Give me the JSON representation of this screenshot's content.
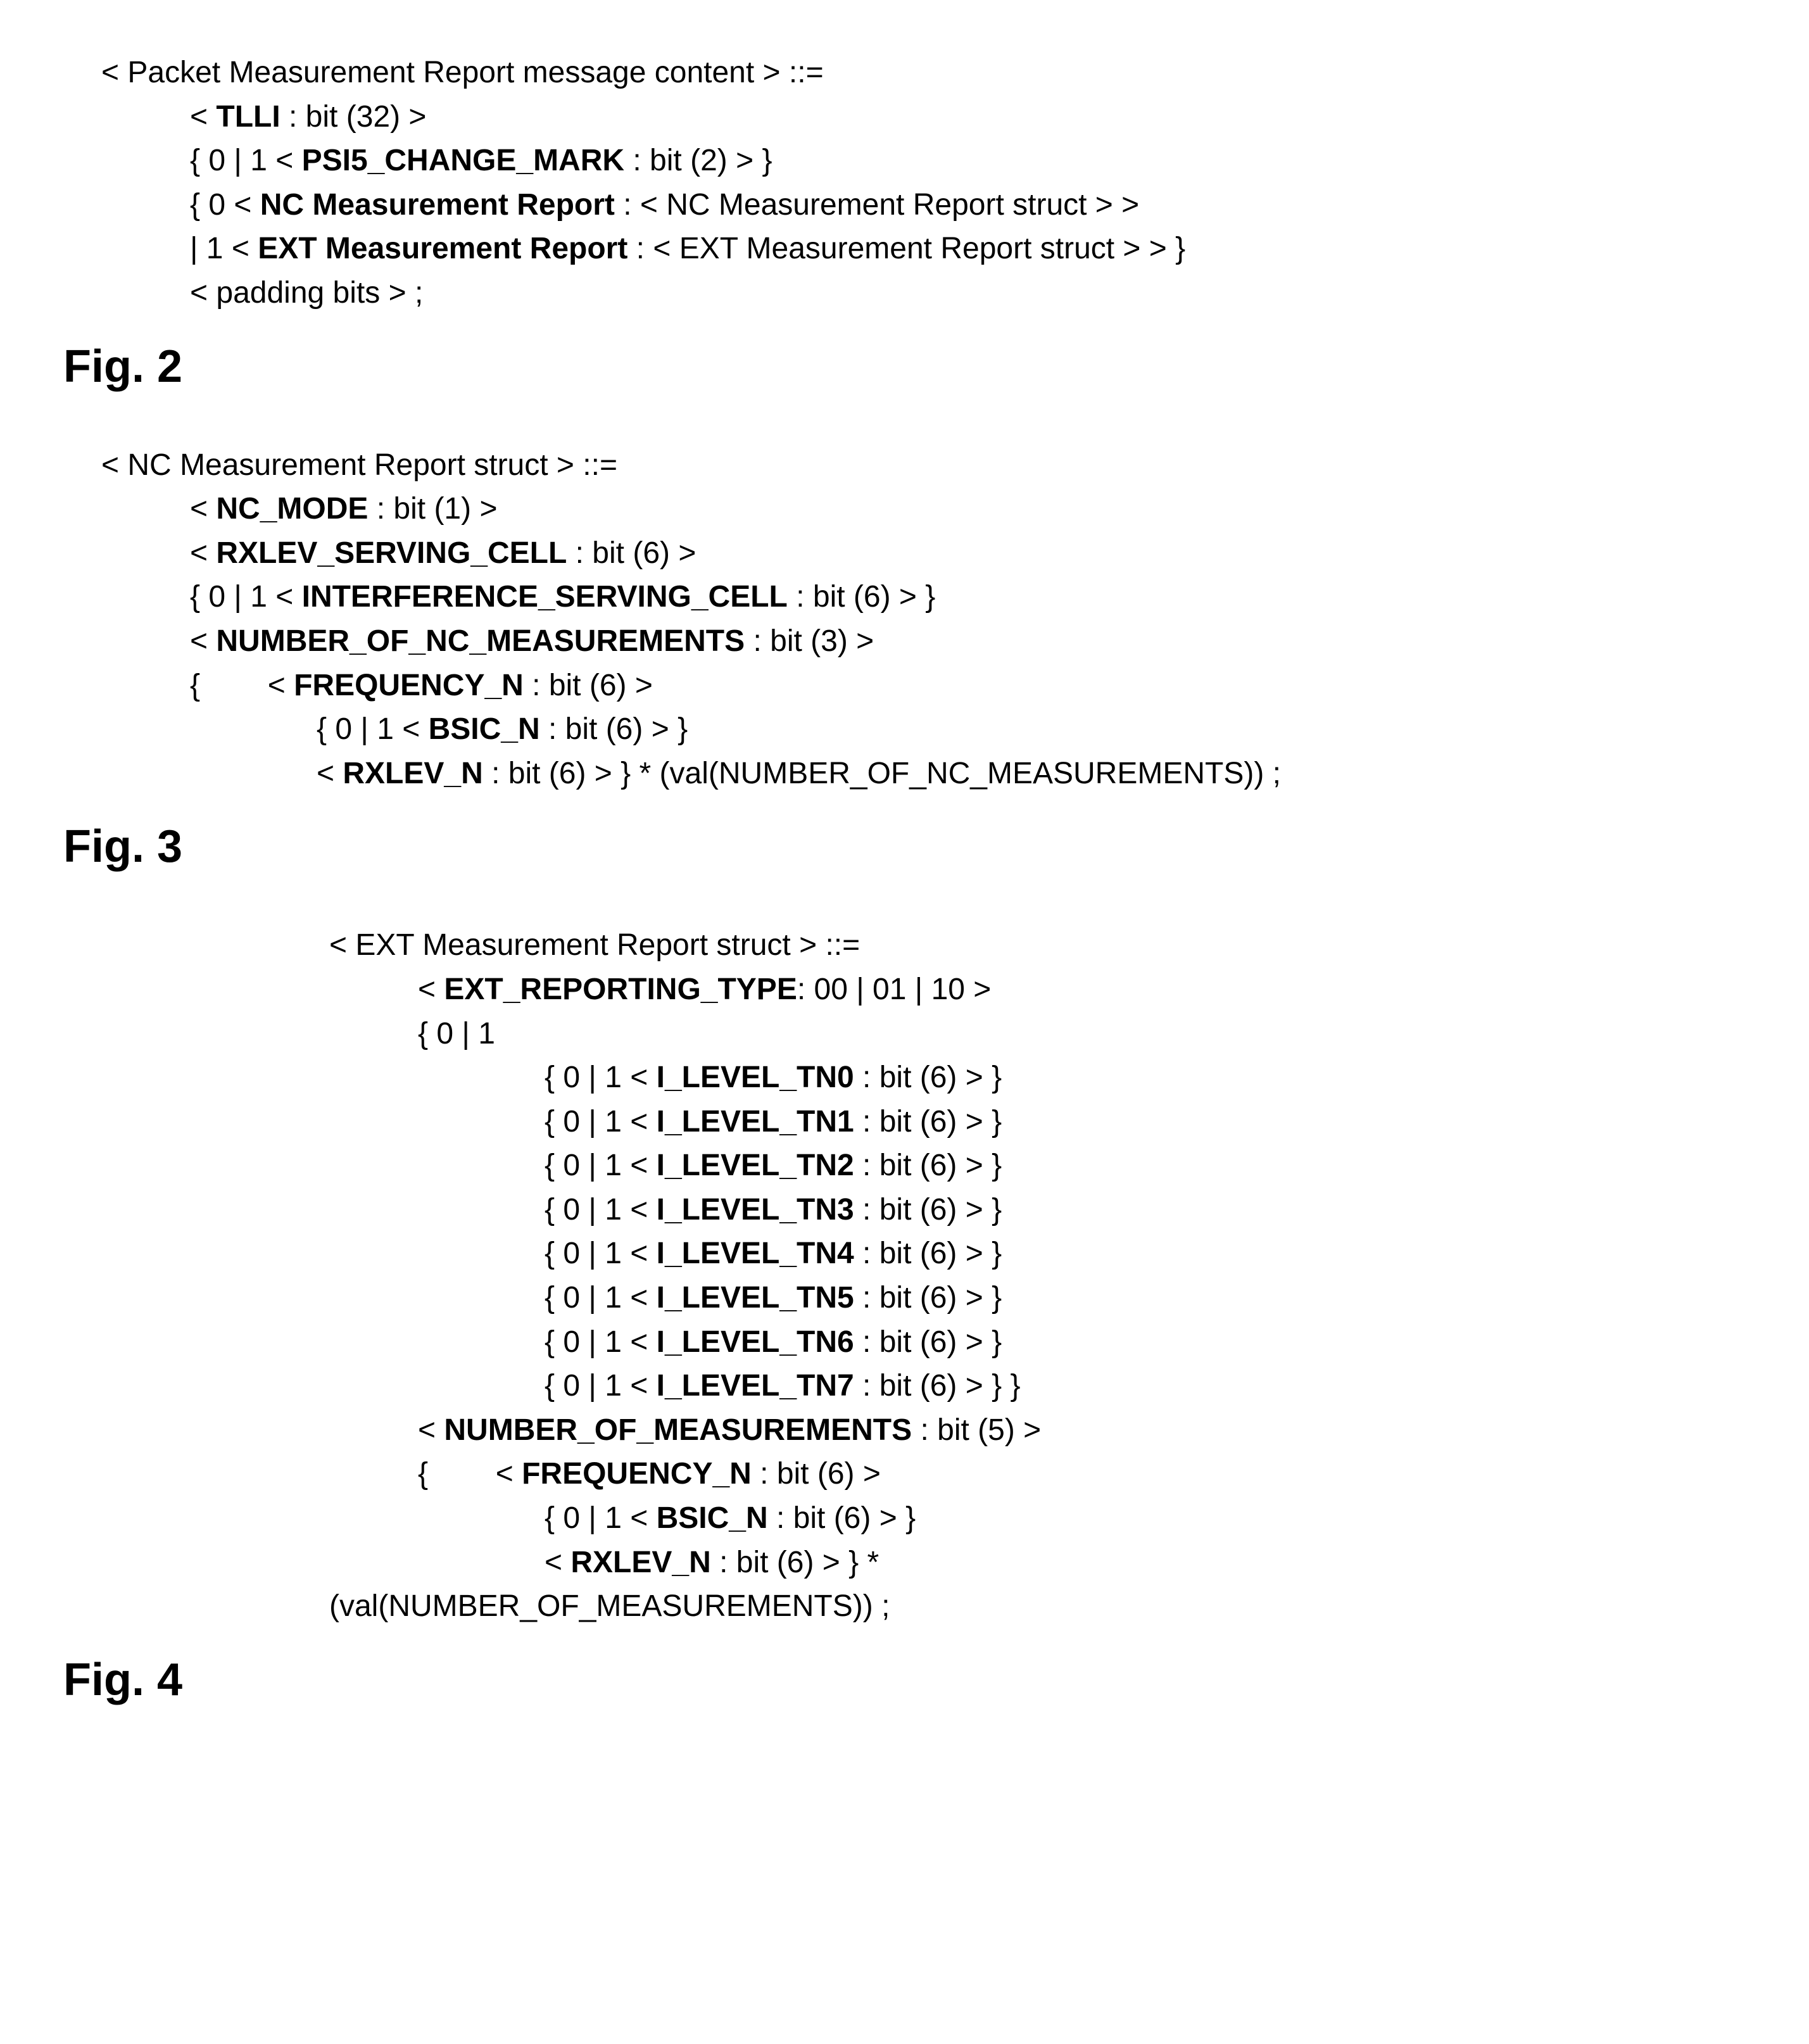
{
  "fig2": {
    "label": "Fig. 2",
    "lines": [
      {
        "indent": "indent0",
        "segments": [
          {
            "t": "< Packet Measurement Report message content > ::="
          }
        ]
      },
      {
        "indent": "indent1",
        "segments": [
          {
            "t": "< "
          },
          {
            "t": "TLLI",
            "b": true
          },
          {
            "t": " : bit (32) >"
          }
        ]
      },
      {
        "indent": "indent1",
        "segments": [
          {
            "t": "{ 0 | 1 < "
          },
          {
            "t": "PSI5_CHANGE_MARK",
            "b": true
          },
          {
            "t": " : bit (2) > }"
          }
        ]
      },
      {
        "indent": "indent1",
        "segments": [
          {
            "t": "{ 0 < "
          },
          {
            "t": "NC Measurement Report",
            "b": true
          },
          {
            "t": " : < NC Measurement Report struct > >"
          }
        ]
      },
      {
        "indent": "indent1",
        "segments": [
          {
            "t": "| 1 < "
          },
          {
            "t": "EXT Measurement Report",
            "b": true
          },
          {
            "t": " : < EXT Measurement Report struct > > }"
          }
        ]
      },
      {
        "indent": "indent1",
        "segments": [
          {
            "t": "< padding bits > ;"
          }
        ]
      }
    ]
  },
  "fig3": {
    "label": "Fig. 3",
    "lines": [
      {
        "indent": "indent0",
        "segments": [
          {
            "t": "< NC Measurement Report struct > ::="
          }
        ]
      },
      {
        "indent": "indent1",
        "segments": [
          {
            "t": "< "
          },
          {
            "t": "NC_MODE",
            "b": true
          },
          {
            "t": " : bit (1) >"
          }
        ]
      },
      {
        "indent": "indent1",
        "segments": [
          {
            "t": "< "
          },
          {
            "t": "RXLEV_SERVING_CELL",
            "b": true
          },
          {
            "t": " : bit (6) >"
          }
        ]
      },
      {
        "indent": "indent1",
        "segments": [
          {
            "t": "{ 0 | 1 < "
          },
          {
            "t": "INTERFERENCE_SERVING_CELL",
            "b": true
          },
          {
            "t": " : bit (6) > }"
          }
        ]
      },
      {
        "indent": "indent1",
        "segments": [
          {
            "t": "< "
          },
          {
            "t": "NUMBER_OF_NC_MEASUREMENTS",
            "b": true
          },
          {
            "t": " : bit (3) >"
          }
        ]
      },
      {
        "indent": "indent1",
        "segments": [
          {
            "t": "{        < "
          },
          {
            "t": "FREQUENCY_N",
            "b": true
          },
          {
            "t": " : bit (6) >"
          }
        ]
      },
      {
        "indent": "indent2",
        "segments": [
          {
            "t": "{ 0 | 1 < "
          },
          {
            "t": "BSIC_N",
            "b": true
          },
          {
            "t": " : bit (6) > }"
          }
        ]
      },
      {
        "indent": "indent2",
        "segments": [
          {
            "t": "< "
          },
          {
            "t": "RXLEV_N",
            "b": true
          },
          {
            "t": " : bit (6) > } * (val(NUMBER_OF_NC_MEASUREMENTS)) ;"
          }
        ]
      }
    ]
  },
  "fig4": {
    "label": "Fig. 4",
    "lines": [
      {
        "indent": "indent-fig4-main",
        "segments": [
          {
            "t": "< EXT Measurement Report struct > ::="
          }
        ]
      },
      {
        "indent": "indent-fig4-sub",
        "segments": [
          {
            "t": "< "
          },
          {
            "t": "EXT_REPORTING_TYPE",
            "b": true
          },
          {
            "t": ": 00 | 01 | 10 >"
          }
        ]
      },
      {
        "indent": "indent-fig4-sub",
        "segments": [
          {
            "t": "{ 0 | 1"
          }
        ]
      },
      {
        "indent": "indent-fig4-sub2",
        "segments": [
          {
            "t": "{ 0 | 1 < "
          },
          {
            "t": "I_LEVEL_TN0",
            "b": true
          },
          {
            "t": " : bit (6) > }"
          }
        ]
      },
      {
        "indent": "indent-fig4-sub2",
        "segments": [
          {
            "t": "{ 0 | 1 < "
          },
          {
            "t": "I_LEVEL_TN1",
            "b": true
          },
          {
            "t": " : bit (6) > }"
          }
        ]
      },
      {
        "indent": "indent-fig4-sub2",
        "segments": [
          {
            "t": "{ 0 | 1 < "
          },
          {
            "t": "I_LEVEL_TN2",
            "b": true
          },
          {
            "t": " : bit (6) > }"
          }
        ]
      },
      {
        "indent": "indent-fig4-sub2",
        "segments": [
          {
            "t": "{ 0 | 1 < "
          },
          {
            "t": "I_LEVEL_TN3",
            "b": true
          },
          {
            "t": " : bit (6) > }"
          }
        ]
      },
      {
        "indent": "indent-fig4-sub2",
        "segments": [
          {
            "t": "{ 0 | 1 < "
          },
          {
            "t": "I_LEVEL_TN4",
            "b": true
          },
          {
            "t": " : bit (6) > }"
          }
        ]
      },
      {
        "indent": "indent-fig4-sub2",
        "segments": [
          {
            "t": "{ 0 | 1 < "
          },
          {
            "t": "I_LEVEL_TN5",
            "b": true
          },
          {
            "t": " : bit (6) > }"
          }
        ]
      },
      {
        "indent": "indent-fig4-sub2",
        "segments": [
          {
            "t": "{ 0 | 1 < "
          },
          {
            "t": "I_LEVEL_TN6",
            "b": true
          },
          {
            "t": " : bit (6) > }"
          }
        ]
      },
      {
        "indent": "indent-fig4-sub2",
        "segments": [
          {
            "t": "{ 0 | 1 < "
          },
          {
            "t": "I_LEVEL_TN7",
            "b": true
          },
          {
            "t": " : bit (6) > } }"
          }
        ]
      },
      {
        "indent": "indent-fig4-sub",
        "segments": [
          {
            "t": "< "
          },
          {
            "t": "NUMBER_OF_MEASUREMENTS",
            "b": true
          },
          {
            "t": " : bit (5) >"
          }
        ]
      },
      {
        "indent": "indent-fig4-sub",
        "segments": [
          {
            "t": "{        < "
          },
          {
            "t": "FREQUENCY_N",
            "b": true
          },
          {
            "t": " : bit (6) >"
          }
        ]
      },
      {
        "indent": "indent-fig4-sub2",
        "segments": [
          {
            "t": "{ 0 | 1 < "
          },
          {
            "t": "BSIC_N",
            "b": true
          },
          {
            "t": " : bit (6) > }"
          }
        ]
      },
      {
        "indent": "indent-fig4-sub2",
        "segments": [
          {
            "t": "< "
          },
          {
            "t": "RXLEV_N",
            "b": true
          },
          {
            "t": " : bit (6) > } *"
          }
        ]
      },
      {
        "indent": "indent-fig4-val",
        "segments": [
          {
            "t": "(val(NUMBER_OF_MEASUREMENTS)) ;"
          }
        ]
      }
    ]
  }
}
